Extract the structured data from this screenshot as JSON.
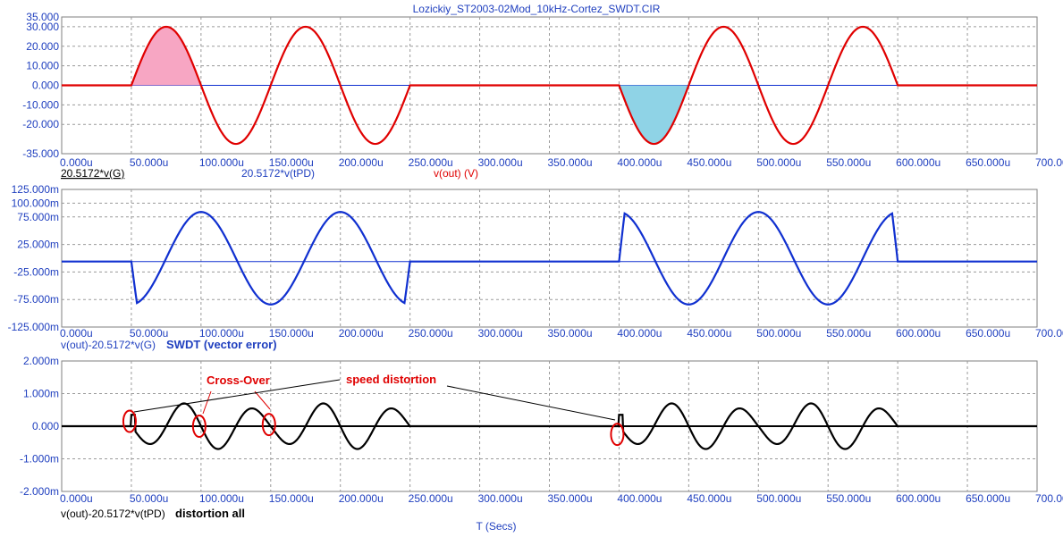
{
  "title": "Lozickiy_ST2003-02Mod_10kHz-Cortez_SWDT.CIR",
  "x_axis_label": "T (Secs)",
  "colors": {
    "grid": "#9a9a9a",
    "axis_text": "#1f3fbf",
    "red_trace": "#e00000",
    "blue_trace": "#1030d0",
    "black_trace": "#000000",
    "pink_fill": "#f7a6c3",
    "cyan_fill": "#8fd3e6"
  },
  "chart_data": [
    {
      "type": "line",
      "panel": "top",
      "xlim": [
        0,
        700
      ],
      "ylim": [
        -35,
        35
      ],
      "x_unit": "u",
      "x_ticks": [
        "0.000u",
        "50.000u",
        "100.000u",
        "150.000u",
        "200.000u",
        "250.000u",
        "300.000u",
        "350.000u",
        "400.000u",
        "450.000u",
        "500.000u",
        "550.000u",
        "600.000u",
        "650.000u",
        "700.000u"
      ],
      "y_ticks": [
        {
          "value": 35,
          "label": "35.000"
        },
        {
          "value": 30,
          "label": "30.000"
        },
        {
          "value": 20,
          "label": "20.000"
        },
        {
          "value": 10,
          "label": "10.000"
        },
        {
          "value": 0,
          "label": "0.000"
        },
        {
          "value": -10,
          "label": "-10.000"
        },
        {
          "value": -20,
          "label": "-20.000"
        },
        {
          "value": -35,
          "label": "-35.000"
        }
      ],
      "legend_labels": [
        "20.5172*v(G)",
        "20.5172*v(tPD)",
        "v(out) (V)"
      ],
      "series": [
        {
          "name": "v(out) (V)",
          "color": "#e00000",
          "segments": [
            {
              "from": 50,
              "to": 250,
              "amplitude": 30,
              "period": 100,
              "phase_deg": 0
            },
            {
              "from": 400,
              "to": 600,
              "amplitude": 30,
              "period": 100,
              "phase_deg": 180
            }
          ]
        },
        {
          "name": "20.5172*v(G)",
          "color": "#1030d0",
          "values": "zero baseline"
        }
      ],
      "shaded_regions": [
        {
          "from": 50,
          "to": 100,
          "color": "pink"
        },
        {
          "from": 400,
          "to": 450,
          "color": "cyan"
        }
      ]
    },
    {
      "type": "line",
      "panel": "middle",
      "xlim": [
        0,
        700
      ],
      "ylim": [
        -125,
        125
      ],
      "x_ticks": [
        "0.000u",
        "50.000u",
        "100.000u",
        "150.000u",
        "200.000u",
        "250.000u",
        "300.000u",
        "350.000u",
        "400.000u",
        "450.000u",
        "500.000u",
        "550.000u",
        "600.000u",
        "650.000u",
        "700.000u"
      ],
      "y_ticks": [
        {
          "value": 125,
          "label": "125.000m"
        },
        {
          "value": 100,
          "label": "100.000m"
        },
        {
          "value": 75,
          "label": "75.000m"
        },
        {
          "value": 25,
          "label": "25.000m"
        },
        {
          "value": -25,
          "label": "-25.000m"
        },
        {
          "value": -75,
          "label": "-75.000m"
        },
        {
          "value": -125,
          "label": "-125.000m"
        }
      ],
      "legend_labels": [
        "v(out)-20.5172*v(G)",
        "SWDT (vector error)"
      ],
      "series": [
        {
          "name": "v(out)-20.5172*v(G)",
          "color": "#1030d0",
          "segments": [
            {
              "from": 50,
              "to": 250,
              "amplitude": -84,
              "shape": "cosine",
              "period": 100
            },
            {
              "from": 400,
              "to": 600,
              "amplitude": 84,
              "shape": "cosine",
              "period": 100
            }
          ],
          "baseline_m": -6
        }
      ]
    },
    {
      "type": "line",
      "panel": "bottom",
      "xlim": [
        0,
        700
      ],
      "ylim": [
        -2,
        2
      ],
      "x_ticks": [
        "0.000u",
        "50.000u",
        "100.000u",
        "150.000u",
        "200.000u",
        "250.000u",
        "300.000u",
        "350.000u",
        "400.000u",
        "450.000u",
        "500.000u",
        "550.000u",
        "600.000u",
        "650.000u",
        "700.000u"
      ],
      "y_ticks": [
        {
          "value": 2,
          "label": "2.000m"
        },
        {
          "value": 1,
          "label": "1.000m"
        },
        {
          "value": 0,
          "label": "0.000"
        },
        {
          "value": -1,
          "label": "-1.000m"
        },
        {
          "value": -2,
          "label": "-2.000m"
        }
      ],
      "legend_labels": [
        "v(out)-20.5172*v(tPD)",
        "distortion all"
      ],
      "annotations": [
        {
          "text": "Cross-Over",
          "markers_at": [
            50,
            100,
            150
          ]
        },
        {
          "text": "speed distortion",
          "markers_at": [
            50,
            400
          ]
        }
      ],
      "series": [
        {
          "name": "v(out)-20.5172*v(tPD)",
          "color": "#000000",
          "segments": [
            {
              "from": 50,
              "to": 250,
              "amplitude": 0.8,
              "period": 50
            },
            {
              "from": 400,
              "to": 600,
              "amplitude": 0.8,
              "period": 50
            }
          ]
        }
      ]
    }
  ]
}
